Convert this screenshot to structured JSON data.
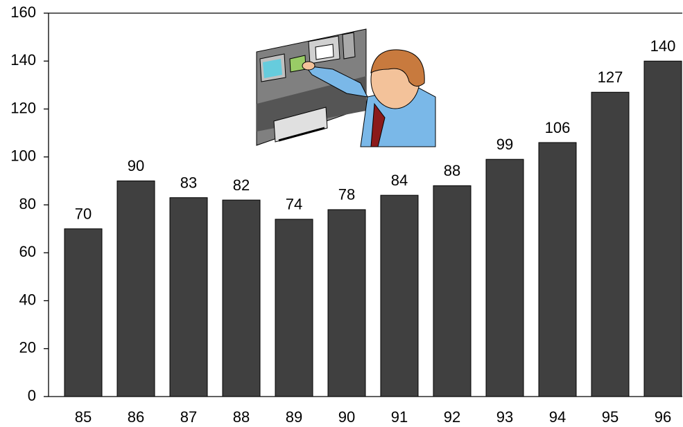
{
  "chart_data": {
    "type": "bar",
    "categories": [
      "85",
      "86",
      "87",
      "88",
      "89",
      "90",
      "91",
      "92",
      "93",
      "94",
      "95",
      "96"
    ],
    "values": [
      70,
      90,
      83,
      82,
      74,
      78,
      84,
      88,
      99,
      106,
      127,
      140
    ],
    "color": "#404040",
    "ylim": [
      0,
      160
    ],
    "yticks": [
      0,
      20,
      40,
      60,
      80,
      100,
      120,
      140,
      160
    ]
  }
}
